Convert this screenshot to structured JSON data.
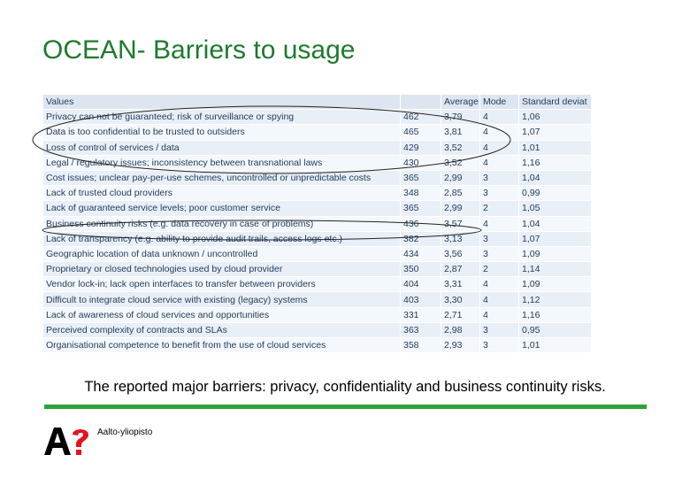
{
  "slide": {
    "title": "OCEAN- Barriers to usage",
    "caption": "The reported major barriers: privacy, confidentiality and business continuity risks.",
    "brand": "Aalto-yliopisto",
    "accent_color": "#2fa13a",
    "title_color": "#1e7a2e",
    "logo_icon": "aalto-logo-icon"
  },
  "table": {
    "headers": [
      "Values",
      "",
      "Average",
      "Mode",
      "Standard deviat"
    ],
    "rows": [
      [
        "Privacy can not be guaranteed; risk of surveillance or spying",
        "462",
        "3,79",
        "4",
        "1,06"
      ],
      [
        "Data is too confidential to be trusted to outsiders",
        "465",
        "3,81",
        "4",
        "1,07"
      ],
      [
        "Loss of control of services / data",
        "429",
        "3,52",
        "4",
        "1,01"
      ],
      [
        "Legal / regulatory issues; inconsistency between transnational laws",
        "430",
        "3,52",
        "4",
        "1,16"
      ],
      [
        "Cost issues; unclear pay-per-use schemes, uncontrolled or unpredictable costs",
        "365",
        "2,99",
        "3",
        "1,04"
      ],
      [
        "Lack of trusted cloud providers",
        "348",
        "2,85",
        "3",
        "0,99"
      ],
      [
        "Lack of guaranteed service levels; poor customer service",
        "365",
        "2,99",
        "2",
        "1,05"
      ],
      [
        "Business continuity risks (e.g. data recovery in case of problems)",
        "436",
        "3,57",
        "4",
        "1,04"
      ],
      [
        "Lack of transparency (e.g. ability to provide audit trails, access logs etc.)",
        "382",
        "3,13",
        "3",
        "1,07"
      ],
      [
        "Geographic location of data unknown / uncontrolled",
        "434",
        "3,56",
        "3",
        "1,09"
      ],
      [
        "Proprietary or closed technologies used by cloud provider",
        "350",
        "2,87",
        "2",
        "1,14"
      ],
      [
        "Vendor lock-in; lack open interfaces to transfer between providers",
        "404",
        "3,31",
        "4",
        "1,09"
      ],
      [
        "Difficult to integrate cloud service with existing (legacy) systems",
        "403",
        "3,30",
        "4",
        "1,12"
      ],
      [
        "Lack of awareness of cloud services and opportunities",
        "331",
        "2,71",
        "4",
        "1,16"
      ],
      [
        "Perceived complexity of contracts and SLAs",
        "363",
        "2,98",
        "3",
        "0,95"
      ],
      [
        "Organisational competence to benefit from the use of cloud services",
        "358",
        "2,93",
        "3",
        "1,01"
      ]
    ]
  }
}
